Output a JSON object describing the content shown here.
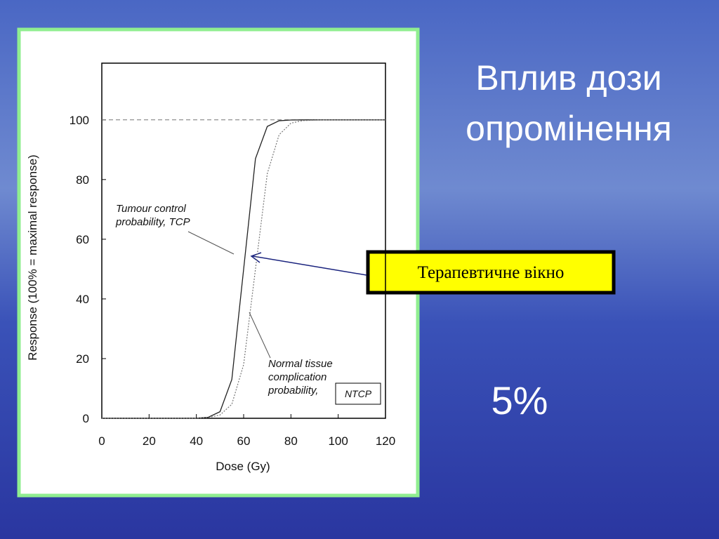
{
  "slide": {
    "title": [
      "Вплив дози",
      "опромінення"
    ],
    "callout": "Терапевтичне вікно",
    "note": "5%"
  },
  "chart_data": {
    "type": "line",
    "xlabel": "Dose (Gy)",
    "ylabel": "Response (100% = maximal response)",
    "x": [
      0,
      5,
      10,
      15,
      20,
      25,
      30,
      35,
      40,
      45,
      50,
      55,
      60,
      65,
      70,
      75,
      80,
      85,
      90,
      95,
      100,
      105,
      110,
      115,
      120
    ],
    "series": [
      {
        "name": "TCP",
        "color": "#222222",
        "style": "solid",
        "values": [
          0,
          0,
          0,
          0,
          0,
          0,
          0,
          0,
          0.05,
          0.33,
          2.2,
          13,
          50,
          87,
          97.8,
          99.7,
          99.95,
          100,
          100,
          100,
          100,
          100,
          100,
          100,
          100
        ]
      },
      {
        "name": "NTCP",
        "color": "#777777",
        "style": "dotted",
        "values": [
          0,
          0,
          0,
          0,
          0,
          0,
          0,
          0,
          0.06,
          0.25,
          1.1,
          4.7,
          18,
          50,
          82,
          95,
          98.9,
          99.75,
          99.9,
          100,
          100,
          100,
          100,
          100,
          100
        ]
      }
    ],
    "xlim": [
      0,
      120
    ],
    "xticks": [
      0,
      20,
      40,
      60,
      80,
      100,
      120
    ],
    "ylim": [
      0,
      119
    ],
    "yticks": [
      0,
      20,
      40,
      60,
      80,
      100
    ],
    "reference_line": 100,
    "annotations": [
      {
        "lines": [
          "Tumour control",
          "probability, TCP"
        ]
      },
      {
        "lines": [
          "Normal tissue",
          "complication",
          "probability,"
        ],
        "boxed": "NTCP"
      }
    ]
  }
}
